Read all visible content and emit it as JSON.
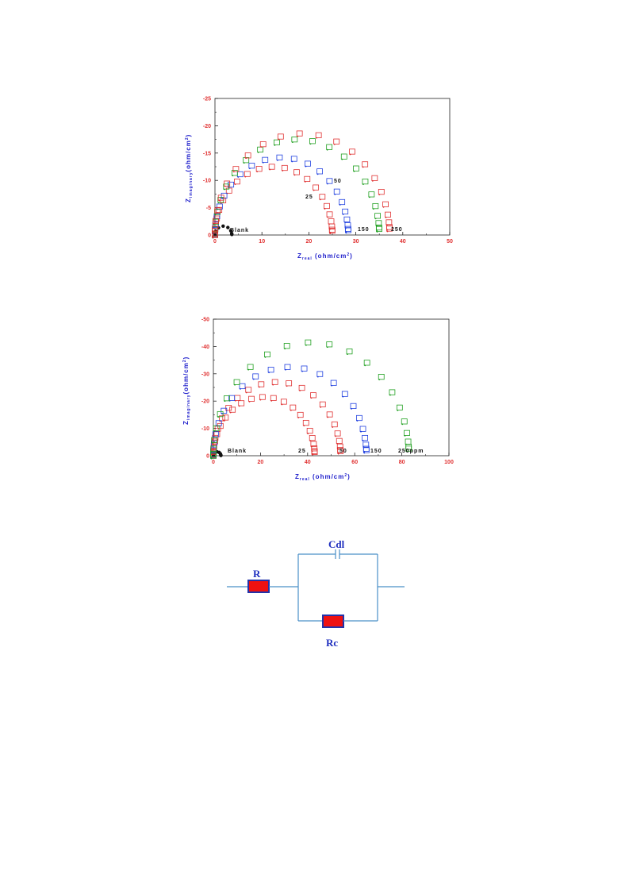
{
  "chart_data": [
    {
      "type": "scatter",
      "xlim": [
        0,
        50
      ],
      "ylim": [
        0,
        -25
      ],
      "xticks": [
        0,
        10,
        20,
        30,
        40,
        50
      ],
      "yticks": [
        0,
        -5,
        -10,
        -15,
        -20,
        -25
      ],
      "xlabel": {
        "main": "Z",
        "sub": "real",
        "unit": " (ohm/cm",
        "sup": "2",
        "close": ")"
      },
      "ylabel": {
        "main": "Z",
        "sub": "imaginary",
        "unit": "(ohm/cm",
        "sup": "2",
        "close": ")"
      },
      "series": [
        {
          "name": "Blank",
          "color": "#111111",
          "r": 1.8
        },
        {
          "name": "25",
          "color": "#e03030",
          "r": 12.5
        },
        {
          "name": "50",
          "color": "#2040e0",
          "r": 14.2
        },
        {
          "name": "150",
          "color": "#20a020",
          "r": 17.5
        },
        {
          "name": "250",
          "color": "#e03030",
          "r": 18.6
        }
      ],
      "labels": [
        "Blank",
        "25",
        "50",
        "150",
        "250"
      ]
    },
    {
      "type": "scatter",
      "xlim": [
        0,
        100
      ],
      "ylim": [
        0,
        -50
      ],
      "xticks": [
        0,
        20,
        40,
        60,
        80,
        100
      ],
      "yticks": [
        0,
        -10,
        -20,
        -30,
        -40,
        -50
      ],
      "xlabel": {
        "main": "Z",
        "sub": "real",
        "unit": " (ohm/cm",
        "sup": "2",
        "close": ")"
      },
      "ylabel": {
        "main": "Z",
        "sub": "imaginary",
        "unit": "(ohm/cm",
        "sup": "2",
        "close": ")"
      },
      "series": [
        {
          "name": "Blank",
          "color": "#111111",
          "r": 1.6
        },
        {
          "name": "25",
          "color": "#e03030",
          "r": 21.5
        },
        {
          "name": "50",
          "color": "#e03030",
          "r": 27.0
        },
        {
          "name": "150",
          "color": "#2040e0",
          "r": 32.5
        },
        {
          "name": "250ppm",
          "color": "#20a020",
          "r": 41.5
        }
      ],
      "labels": [
        "Blank",
        "25",
        "50",
        "150",
        "250ppm"
      ]
    }
  ],
  "circuit": {
    "labels": {
      "r": "R",
      "cdl": "Cdl",
      "rc": "Rc"
    },
    "colors": {
      "wire": "#4a90c8",
      "resistor_fill": "#ee1111",
      "resistor_border": "#2233aa",
      "label": "#1f2fbf"
    }
  }
}
